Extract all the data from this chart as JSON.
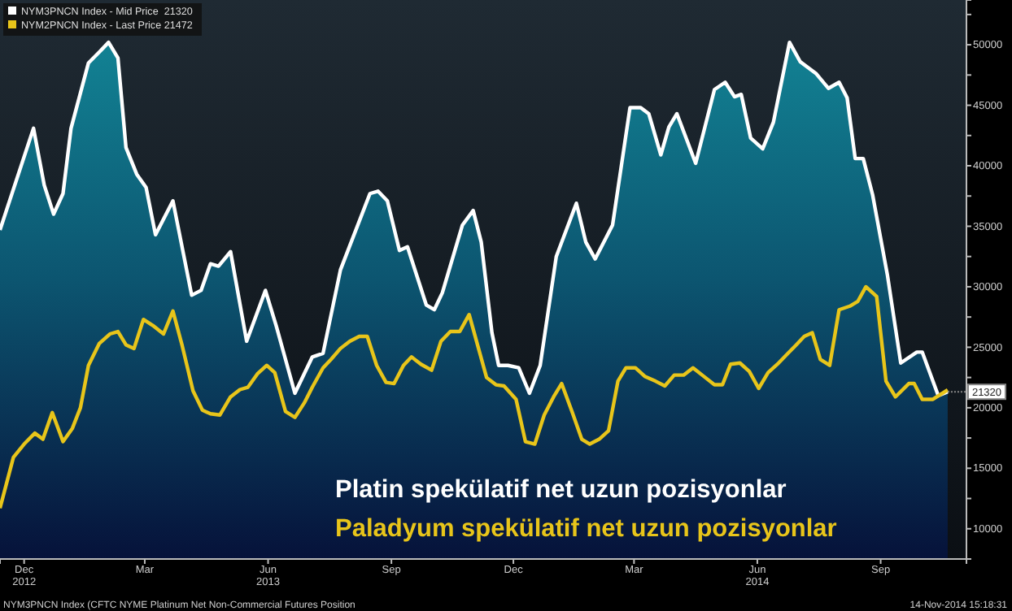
{
  "chart_data": {
    "type": "line",
    "xlim": [
      "2012-11-27",
      "2014-11-18"
    ],
    "xticks": [
      {
        "value": "2012-12-15",
        "label": "Dec\n2012"
      },
      {
        "value": "2013-03-15",
        "label": "Mar"
      },
      {
        "value": "2013-06-15",
        "label": "Jun\n2013"
      },
      {
        "value": "2013-09-15",
        "label": "Sep"
      },
      {
        "value": "2013-12-15",
        "label": "Dec"
      },
      {
        "value": "2014-03-15",
        "label": "Mar"
      },
      {
        "value": "2014-06-15",
        "label": "Jun\n2014"
      },
      {
        "value": "2014-09-15",
        "label": "Sep"
      }
    ],
    "ylim": [
      7500,
      53700
    ],
    "yticks": [
      10000,
      {
        "value": 12500,
        "label": null
      },
      15000,
      {
        "value": 17500,
        "label": null
      },
      20000,
      {
        "value": 22500,
        "label": null
      },
      25000,
      {
        "value": 27500,
        "label": null
      },
      30000,
      {
        "value": 32500,
        "label": null
      },
      35000,
      {
        "value": 37500,
        "label": null
      },
      40000,
      {
        "value": 42500,
        "label": null
      },
      45000,
      {
        "value": 47500,
        "label": null
      },
      50000,
      {
        "value": 52500,
        "label": null
      }
    ],
    "grid": false,
    "legend": "top left",
    "series": [
      {
        "name": "NYM3PNCN Index - Mid Price  21320",
        "type": "area",
        "color": "#ffffff",
        "x": [
          "2012-11-27",
          "2012-12-22",
          "2012-12-30",
          "2013-01-06",
          "2013-01-13",
          "2013-01-19",
          "2013-02-01",
          "2013-02-10",
          "2013-02-16",
          "2013-02-23",
          "2013-03-01",
          "2013-03-09",
          "2013-03-16",
          "2013-03-23",
          "2013-04-05",
          "2013-04-19",
          "2013-04-26",
          "2013-05-03",
          "2013-05-09",
          "2013-05-18",
          "2013-05-30",
          "2013-06-13",
          "2013-06-21",
          "2013-07-05",
          "2013-07-18",
          "2013-07-26",
          "2013-08-08",
          "2013-08-30",
          "2013-09-05",
          "2013-09-12",
          "2013-09-21",
          "2013-09-27",
          "2013-10-11",
          "2013-10-17",
          "2013-10-23",
          "2013-11-07",
          "2013-11-15",
          "2013-11-21",
          "2013-11-29",
          "2013-12-04",
          "2013-12-11",
          "2013-12-19",
          "2013-12-27",
          "2014-01-04",
          "2014-01-16",
          "2014-01-31",
          "2014-02-07",
          "2014-02-14",
          "2014-02-27",
          "2014-03-12",
          "2014-03-20",
          "2014-03-26",
          "2014-04-04",
          "2014-04-10",
          "2014-04-16",
          "2014-04-30",
          "2014-05-14",
          "2014-05-22",
          "2014-05-29",
          "2014-06-03",
          "2014-06-10",
          "2014-06-19",
          "2014-06-27",
          "2014-07-09",
          "2014-07-17",
          "2014-07-29",
          "2014-08-07",
          "2014-08-15",
          "2014-08-21",
          "2014-08-27",
          "2014-09-02",
          "2014-09-09",
          "2014-09-20",
          "2014-09-30",
          "2014-10-12",
          "2014-10-16",
          "2014-10-28",
          "2014-11-04"
        ],
        "values": [
          34700,
          43100,
          38400,
          36000,
          37700,
          43100,
          48500,
          49500,
          50200,
          48900,
          41500,
          39300,
          38200,
          34300,
          37100,
          29300,
          29700,
          31900,
          31700,
          32900,
          25500,
          29700,
          26800,
          21200,
          24200,
          24500,
          31400,
          37700,
          37900,
          37100,
          33000,
          33300,
          28500,
          28100,
          29500,
          35100,
          36300,
          33700,
          26200,
          23500,
          23500,
          23300,
          21200,
          23500,
          32500,
          36900,
          33700,
          32300,
          35100,
          44800,
          44800,
          44300,
          40900,
          43200,
          44300,
          40200,
          46300,
          46900,
          45700,
          45900,
          42300,
          41400,
          43600,
          50200,
          48600,
          47600,
          46400,
          46900,
          45600,
          40600,
          40600,
          37600,
          31000,
          23700,
          24600,
          24600,
          21000,
          21320
        ]
      },
      {
        "name": "NYM2PNCN Index - Last Price 21472",
        "type": "line",
        "color": "#e8c51a",
        "x": [
          "2012-11-27",
          "2012-12-07",
          "2012-12-15",
          "2012-12-23",
          "2012-12-29",
          "2013-01-05",
          "2013-01-13",
          "2013-01-20",
          "2013-01-26",
          "2013-02-01",
          "2013-02-09",
          "2013-02-17",
          "2013-02-23",
          "2013-03-01",
          "2013-03-07",
          "2013-03-14",
          "2013-03-21",
          "2013-03-29",
          "2013-04-05",
          "2013-04-12",
          "2013-04-20",
          "2013-04-27",
          "2013-05-03",
          "2013-05-10",
          "2013-05-18",
          "2013-05-25",
          "2013-05-31",
          "2013-06-07",
          "2013-06-14",
          "2013-06-20",
          "2013-06-28",
          "2013-07-05",
          "2013-07-12",
          "2013-07-18",
          "2013-07-26",
          "2013-08-01",
          "2013-08-08",
          "2013-08-15",
          "2013-08-22",
          "2013-08-28",
          "2013-09-04",
          "2013-09-11",
          "2013-09-17",
          "2013-09-24",
          "2013-09-30",
          "2013-10-07",
          "2013-10-15",
          "2013-10-22",
          "2013-10-29",
          "2013-11-05",
          "2013-11-12",
          "2013-11-19",
          "2013-11-25",
          "2013-12-02",
          "2013-12-08",
          "2013-12-17",
          "2013-12-24",
          "2013-12-31",
          "2014-01-07",
          "2014-01-14",
          "2014-01-20",
          "2014-01-28",
          "2014-02-04",
          "2014-02-10",
          "2014-02-17",
          "2014-02-24",
          "2014-03-03",
          "2014-03-09",
          "2014-03-16",
          "2014-03-23",
          "2014-03-31",
          "2014-04-07",
          "2014-04-14",
          "2014-04-21",
          "2014-04-28",
          "2014-05-06",
          "2014-05-14",
          "2014-05-20",
          "2014-05-26",
          "2014-06-02",
          "2014-06-09",
          "2014-06-16",
          "2014-06-23",
          "2014-06-30",
          "2014-07-07",
          "2014-07-14",
          "2014-07-20",
          "2014-07-26",
          "2014-08-01",
          "2014-08-08",
          "2014-08-15",
          "2014-08-23",
          "2014-08-29",
          "2014-09-04",
          "2014-09-12",
          "2014-09-19",
          "2014-09-26",
          "2014-10-06",
          "2014-10-10",
          "2014-10-16",
          "2014-10-24",
          "2014-11-04"
        ],
        "values": [
          11700,
          15900,
          17000,
          17900,
          17400,
          19600,
          17200,
          18300,
          20000,
          23500,
          25300,
          26100,
          26300,
          25200,
          24900,
          27300,
          26800,
          26100,
          28000,
          25100,
          21400,
          19800,
          19500,
          19400,
          20900,
          21500,
          21700,
          22800,
          23500,
          22900,
          19700,
          19200,
          20400,
          21700,
          23300,
          24000,
          24900,
          25500,
          25900,
          25900,
          23500,
          22100,
          22000,
          23500,
          24200,
          23600,
          23100,
          25500,
          26300,
          26300,
          27700,
          24900,
          22500,
          21900,
          21800,
          20700,
          17200,
          17000,
          19400,
          20900,
          22000,
          19600,
          17400,
          17000,
          17400,
          18100,
          22200,
          23300,
          23300,
          22600,
          22200,
          21800,
          22700,
          22700,
          23300,
          22600,
          21900,
          21900,
          23600,
          23700,
          23000,
          21600,
          22900,
          23600,
          24400,
          25200,
          25900,
          26200,
          24000,
          23500,
          28100,
          28400,
          28800,
          30000,
          29200,
          22200,
          20900,
          22000,
          22000,
          20700,
          20700,
          21472
        ]
      }
    ],
    "annotations": [
      {
        "text": "21320",
        "x": "2014-11-04",
        "y": 21320
      },
      "Platin spekülatif net uzun pozisyonlar",
      "Paladyum spekülatif net uzun pozisyonlar",
      "NYM3PNCN Index (CFTC NYME Platinum Net Non-Commercial Futures Position",
      "14-Nov-2014 15:18:31"
    ]
  }
}
